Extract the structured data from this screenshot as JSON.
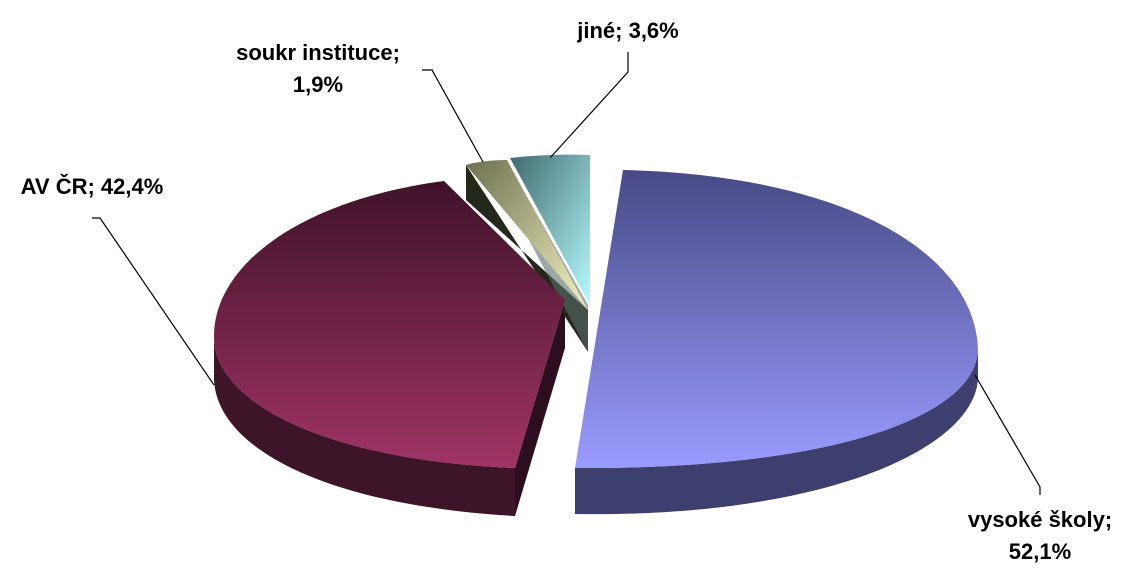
{
  "chart_data": {
    "type": "pie",
    "style": "3d-exploded",
    "legend": "none",
    "slices": [
      {
        "name": "vysoké školy",
        "value": 52.1,
        "label_line1": "vysoké školy;",
        "label_line2": "52,1%",
        "color": "#8c8ce8"
      },
      {
        "name": "AV ČR",
        "value": 42.4,
        "label_line1": "AV ČR; 42,4%",
        "label_line2": "",
        "color": "#8a2e5c"
      },
      {
        "name": "soukr instituce",
        "value": 1.9,
        "label_line1": "soukr instituce;",
        "label_line2": "1,9%",
        "color": "#d8d8a8"
      },
      {
        "name": "jiné",
        "value": 3.6,
        "label_line1": "jiné; 3,6%",
        "label_line2": "",
        "color": "#a8e8ec"
      }
    ]
  }
}
